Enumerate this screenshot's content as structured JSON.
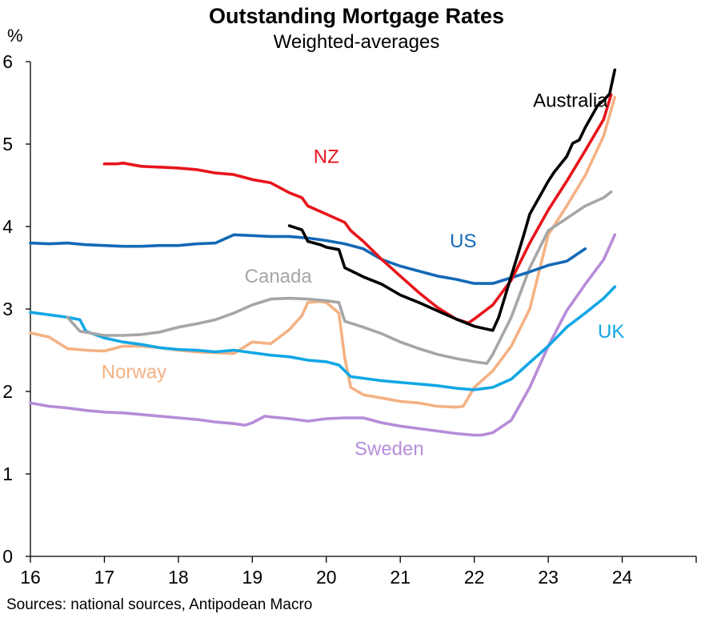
{
  "chart_data": {
    "type": "line",
    "title": "Outstanding Mortgage Rates",
    "subtitle": "Weighted-averages",
    "ylabel": "%",
    "source": "Sources: national sources, Antipodean Macro",
    "xlim": [
      16,
      25
    ],
    "ylim": [
      0,
      6
    ],
    "x_ticks": [
      16,
      17,
      18,
      19,
      20,
      21,
      22,
      23,
      24
    ],
    "y_ticks": [
      0,
      1,
      2,
      3,
      4,
      5,
      6
    ],
    "grid": false,
    "legend": "inline labels",
    "series": [
      {
        "name": "Australia",
        "color": "#000000",
        "x": [
          19.5,
          19.67,
          19.75,
          19.92,
          20.0,
          20.17,
          20.25,
          20.5,
          20.75,
          21.0,
          21.25,
          21.5,
          21.75,
          22.0,
          22.25,
          22.33,
          22.5,
          22.67,
          22.75,
          23.0,
          23.08,
          23.25,
          23.33,
          23.42,
          23.5,
          23.67,
          23.75,
          23.83,
          23.9
        ],
        "y": [
          4.01,
          3.96,
          3.82,
          3.78,
          3.75,
          3.72,
          3.5,
          3.39,
          3.3,
          3.17,
          3.08,
          2.98,
          2.88,
          2.79,
          2.74,
          2.9,
          3.4,
          3.9,
          4.15,
          4.55,
          4.66,
          4.85,
          5.01,
          5.05,
          5.2,
          5.47,
          5.53,
          5.61,
          5.9
        ]
      },
      {
        "name": "NZ",
        "color": "#e8141b",
        "x": [
          17.0,
          17.17,
          17.25,
          17.5,
          17.75,
          18.0,
          18.25,
          18.5,
          18.75,
          19.0,
          19.25,
          19.5,
          19.67,
          19.75,
          20.0,
          20.25,
          20.33,
          20.5,
          20.75,
          21.0,
          21.25,
          21.5,
          21.75,
          21.92,
          22.0,
          22.25,
          22.5,
          22.75,
          23.0,
          23.25,
          23.5,
          23.75,
          23.85
        ],
        "y": [
          4.76,
          4.76,
          4.77,
          4.73,
          4.72,
          4.71,
          4.69,
          4.65,
          4.63,
          4.57,
          4.53,
          4.41,
          4.35,
          4.25,
          4.15,
          4.05,
          3.95,
          3.82,
          3.6,
          3.4,
          3.2,
          3.02,
          2.88,
          2.83,
          2.88,
          3.05,
          3.35,
          3.8,
          4.2,
          4.55,
          4.92,
          5.3,
          5.6
        ]
      },
      {
        "name": "US",
        "color": "#1369b5",
        "x": [
          16.0,
          16.25,
          16.5,
          16.75,
          17.0,
          17.25,
          17.5,
          17.75,
          18.0,
          18.25,
          18.5,
          18.75,
          19.0,
          19.25,
          19.5,
          19.75,
          20.0,
          20.25,
          20.5,
          20.75,
          21.0,
          21.25,
          21.5,
          21.75,
          22.0,
          22.25,
          22.5,
          22.75,
          23.0,
          23.25,
          23.5
        ],
        "y": [
          3.8,
          3.79,
          3.8,
          3.78,
          3.77,
          3.76,
          3.76,
          3.77,
          3.77,
          3.79,
          3.8,
          3.9,
          3.89,
          3.88,
          3.88,
          3.86,
          3.83,
          3.79,
          3.73,
          3.6,
          3.52,
          3.46,
          3.4,
          3.36,
          3.31,
          3.31,
          3.38,
          3.45,
          3.53,
          3.58,
          3.73
        ]
      },
      {
        "name": "Canada",
        "color": "#a6a6a6",
        "x": [
          16.5,
          16.67,
          17.0,
          17.25,
          17.5,
          17.75,
          18.0,
          18.25,
          18.5,
          18.75,
          19.0,
          19.25,
          19.5,
          19.75,
          20.0,
          20.17,
          20.25,
          20.5,
          20.75,
          21.0,
          21.25,
          21.5,
          21.75,
          22.0,
          22.17,
          22.25,
          22.5,
          22.75,
          23.0,
          23.25,
          23.5,
          23.75,
          23.85
        ],
        "y": [
          2.9,
          2.73,
          2.68,
          2.68,
          2.69,
          2.72,
          2.78,
          2.82,
          2.87,
          2.95,
          3.05,
          3.12,
          3.13,
          3.12,
          3.1,
          3.08,
          2.85,
          2.78,
          2.7,
          2.6,
          2.52,
          2.45,
          2.4,
          2.36,
          2.34,
          2.45,
          2.9,
          3.5,
          3.95,
          4.1,
          4.25,
          4.35,
          4.42
        ]
      },
      {
        "name": "UK",
        "color": "#12a7e6",
        "x": [
          16.0,
          16.25,
          16.5,
          16.67,
          16.75,
          17.0,
          17.25,
          17.5,
          17.75,
          18.0,
          18.25,
          18.5,
          18.75,
          19.0,
          19.25,
          19.5,
          19.75,
          20.0,
          20.17,
          20.33,
          20.5,
          20.75,
          21.0,
          21.25,
          21.5,
          21.75,
          22.0,
          22.25,
          22.5,
          22.75,
          23.0,
          23.25,
          23.5,
          23.75,
          23.9
        ],
        "y": [
          2.96,
          2.93,
          2.9,
          2.87,
          2.73,
          2.65,
          2.6,
          2.57,
          2.53,
          2.51,
          2.5,
          2.48,
          2.5,
          2.47,
          2.44,
          2.42,
          2.38,
          2.36,
          2.32,
          2.18,
          2.16,
          2.13,
          2.11,
          2.09,
          2.07,
          2.04,
          2.02,
          2.05,
          2.15,
          2.35,
          2.55,
          2.78,
          2.95,
          3.13,
          3.27
        ]
      },
      {
        "name": "Norway",
        "color": "#f4b183",
        "x": [
          16.0,
          16.25,
          16.5,
          16.75,
          17.0,
          17.25,
          17.5,
          17.75,
          18.0,
          18.25,
          18.5,
          18.75,
          19.0,
          19.25,
          19.5,
          19.67,
          19.75,
          19.92,
          20.0,
          20.17,
          20.25,
          20.33,
          20.5,
          20.75,
          21.0,
          21.25,
          21.5,
          21.75,
          21.85,
          22.0,
          22.25,
          22.5,
          22.75,
          23.0,
          23.25,
          23.5,
          23.75,
          23.9
        ],
        "y": [
          2.71,
          2.66,
          2.52,
          2.5,
          2.49,
          2.55,
          2.55,
          2.53,
          2.5,
          2.48,
          2.47,
          2.46,
          2.6,
          2.58,
          2.75,
          2.92,
          3.08,
          3.09,
          3.08,
          2.95,
          2.4,
          2.05,
          1.96,
          1.92,
          1.88,
          1.86,
          1.82,
          1.81,
          1.82,
          2.05,
          2.25,
          2.55,
          3.0,
          3.9,
          4.25,
          4.62,
          5.1,
          5.57
        ]
      },
      {
        "name": "Sweden",
        "color": "#b68cd8",
        "x": [
          16.0,
          16.25,
          16.5,
          16.75,
          17.0,
          17.25,
          17.5,
          17.75,
          18.0,
          18.25,
          18.5,
          18.75,
          18.9,
          19.0,
          19.17,
          19.25,
          19.5,
          19.75,
          20.0,
          20.25,
          20.5,
          20.75,
          21.0,
          21.25,
          21.5,
          21.75,
          22.0,
          22.1,
          22.25,
          22.5,
          22.75,
          23.0,
          23.25,
          23.5,
          23.75,
          23.9
        ],
        "y": [
          1.86,
          1.82,
          1.8,
          1.77,
          1.75,
          1.74,
          1.72,
          1.7,
          1.68,
          1.66,
          1.63,
          1.61,
          1.59,
          1.62,
          1.7,
          1.69,
          1.67,
          1.64,
          1.67,
          1.68,
          1.68,
          1.62,
          1.58,
          1.55,
          1.52,
          1.49,
          1.47,
          1.47,
          1.5,
          1.65,
          2.05,
          2.55,
          2.98,
          3.3,
          3.6,
          3.9
        ]
      }
    ],
    "annotations": [
      {
        "text": "Australia",
        "series": "Australia",
        "x": 23.3,
        "y": 5.45
      },
      {
        "text": "NZ",
        "series": "NZ",
        "x": 20.0,
        "y": 4.77
      },
      {
        "text": "US",
        "series": "US",
        "x": 21.85,
        "y": 3.75
      },
      {
        "text": "Canada",
        "series": "Canada",
        "x": 19.35,
        "y": 3.32
      },
      {
        "text": "UK",
        "series": "UK",
        "x": 23.85,
        "y": 2.65
      },
      {
        "text": "Norway",
        "series": "Norway",
        "x": 17.4,
        "y": 2.16
      },
      {
        "text": "Sweden",
        "series": "Sweden",
        "x": 20.85,
        "y": 1.23
      }
    ]
  }
}
